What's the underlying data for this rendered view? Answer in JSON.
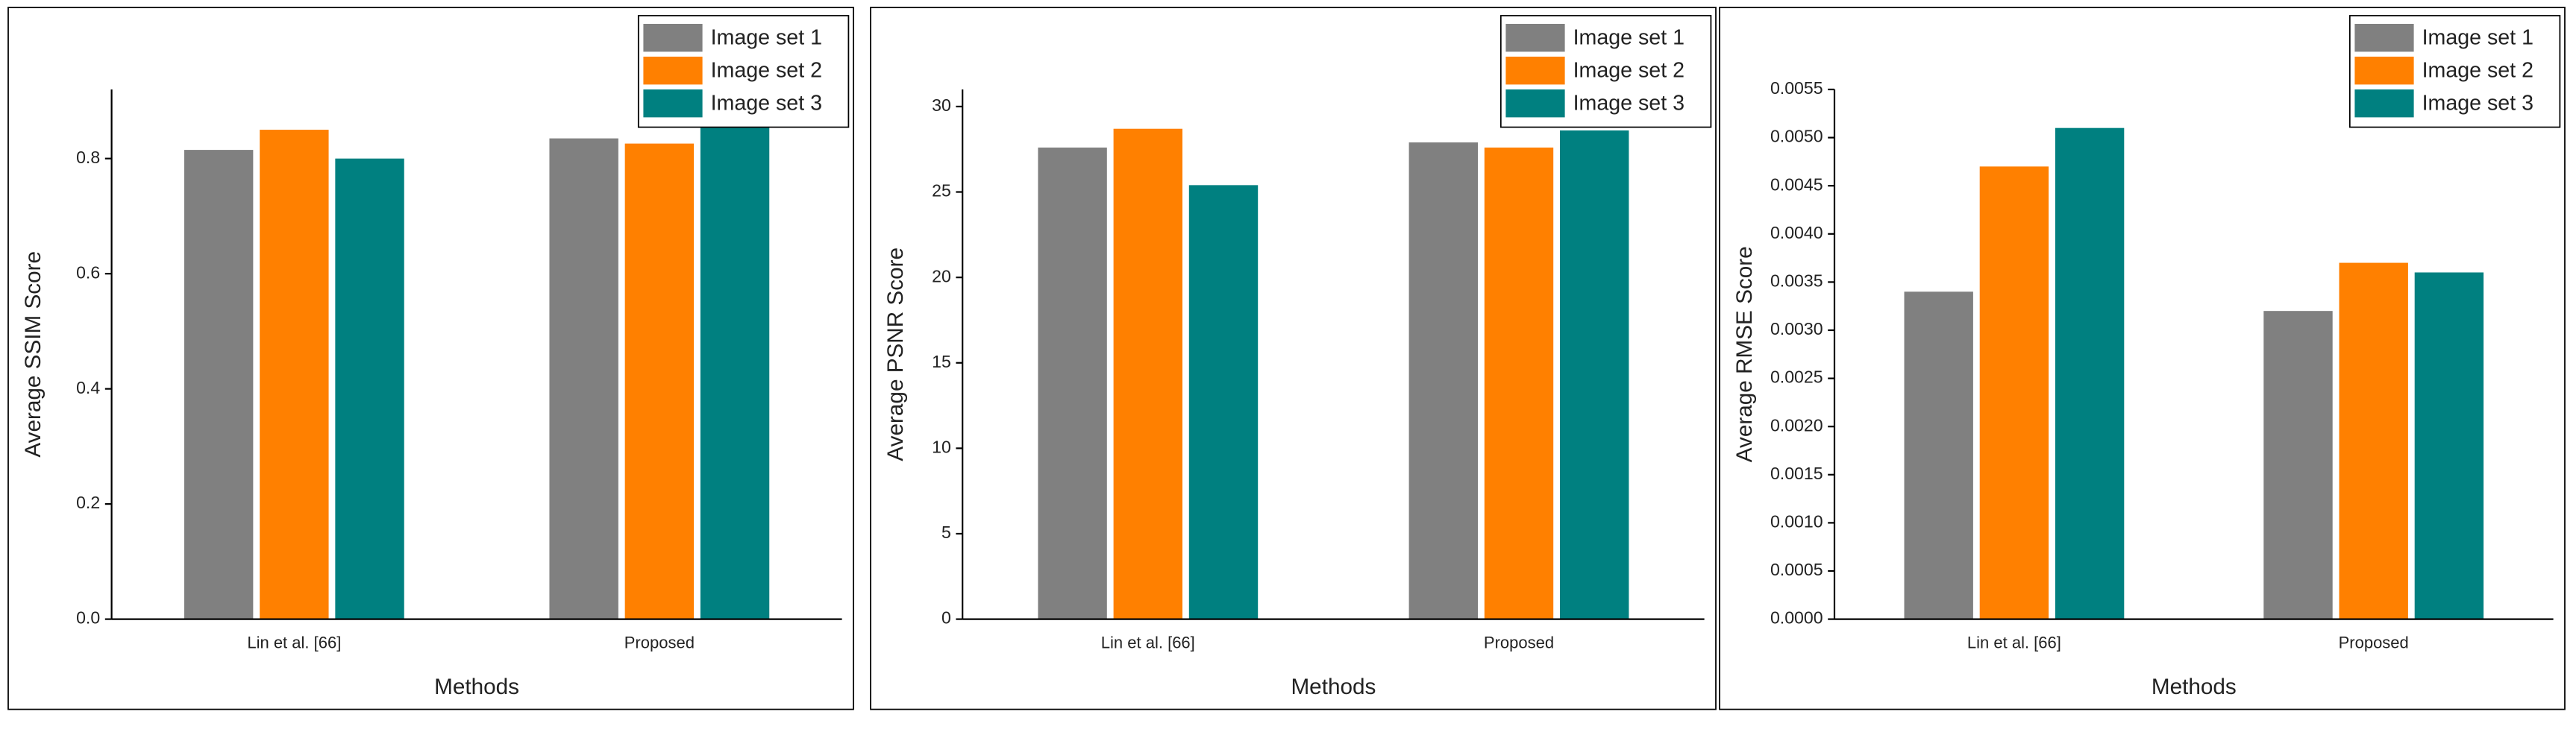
{
  "chart_data": [
    {
      "type": "bar",
      "x_label": "Methods",
      "y_label": "Average SSIM Score",
      "categories": [
        "Lin et al. [66]",
        "Proposed"
      ],
      "series": [
        {
          "name": "Image set 1",
          "color": "#808080",
          "values": [
            0.815,
            0.835
          ]
        },
        {
          "name": "Image set 2",
          "color": "#ff8000",
          "values": [
            0.85,
            0.826
          ]
        },
        {
          "name": "Image set 3",
          "color": "#008080",
          "values": [
            0.8,
            0.855
          ]
        }
      ],
      "ylim": [
        0,
        0.92
      ],
      "yticks": [
        {
          "value": 0,
          "label": "0.0"
        },
        0.2,
        0.4,
        0.6,
        0.8
      ],
      "grid": false,
      "legend": "upper right"
    },
    {
      "type": "bar",
      "x_label": "Methods",
      "y_label": "Average PSNR Score",
      "categories": [
        "Lin et al. [66]",
        "Proposed"
      ],
      "series": [
        {
          "name": "Image set 1",
          "color": "#808080",
          "values": [
            27.6,
            27.9
          ]
        },
        {
          "name": "Image set 2",
          "color": "#ff8000",
          "values": [
            28.7,
            27.6
          ]
        },
        {
          "name": "Image set 3",
          "color": "#008080",
          "values": [
            25.4,
            28.6
          ]
        }
      ],
      "ylim": [
        0,
        31
      ],
      "yticks": [
        0,
        5,
        10,
        15,
        20,
        25,
        30
      ],
      "grid": false,
      "legend": "upper right"
    },
    {
      "type": "bar",
      "x_label": "Methods",
      "y_label": "Average RMSE Score",
      "categories": [
        "Lin et al. [66]",
        "Proposed"
      ],
      "series": [
        {
          "name": "Image set 1",
          "color": "#808080",
          "values": [
            0.0034,
            0.0032
          ]
        },
        {
          "name": "Image set 2",
          "color": "#ff8000",
          "values": [
            0.0047,
            0.0037
          ]
        },
        {
          "name": "Image set 3",
          "color": "#008080",
          "values": [
            0.0051,
            0.0036
          ]
        }
      ],
      "ylim": [
        0,
        0.0055
      ],
      "yticks": [
        {
          "value": 0,
          "label": "0.0000"
        },
        {
          "value": 0.0005,
          "label": "0.0005"
        },
        {
          "value": 0.001,
          "label": "0.0010"
        },
        {
          "value": 0.0015,
          "label": "0.0015"
        },
        {
          "value": 0.002,
          "label": "0.0020"
        },
        {
          "value": 0.0025,
          "label": "0.0025"
        },
        {
          "value": 0.003,
          "label": "0.0030"
        },
        {
          "value": 0.0035,
          "label": "0.0035"
        },
        {
          "value": 0.004,
          "label": "0.0040"
        },
        {
          "value": 0.0045,
          "label": "0.0045"
        },
        {
          "value": 0.005,
          "label": "0.0050"
        },
        {
          "value": 0.0055,
          "label": "0.0055"
        }
      ],
      "grid": false,
      "legend": "upper right"
    }
  ]
}
